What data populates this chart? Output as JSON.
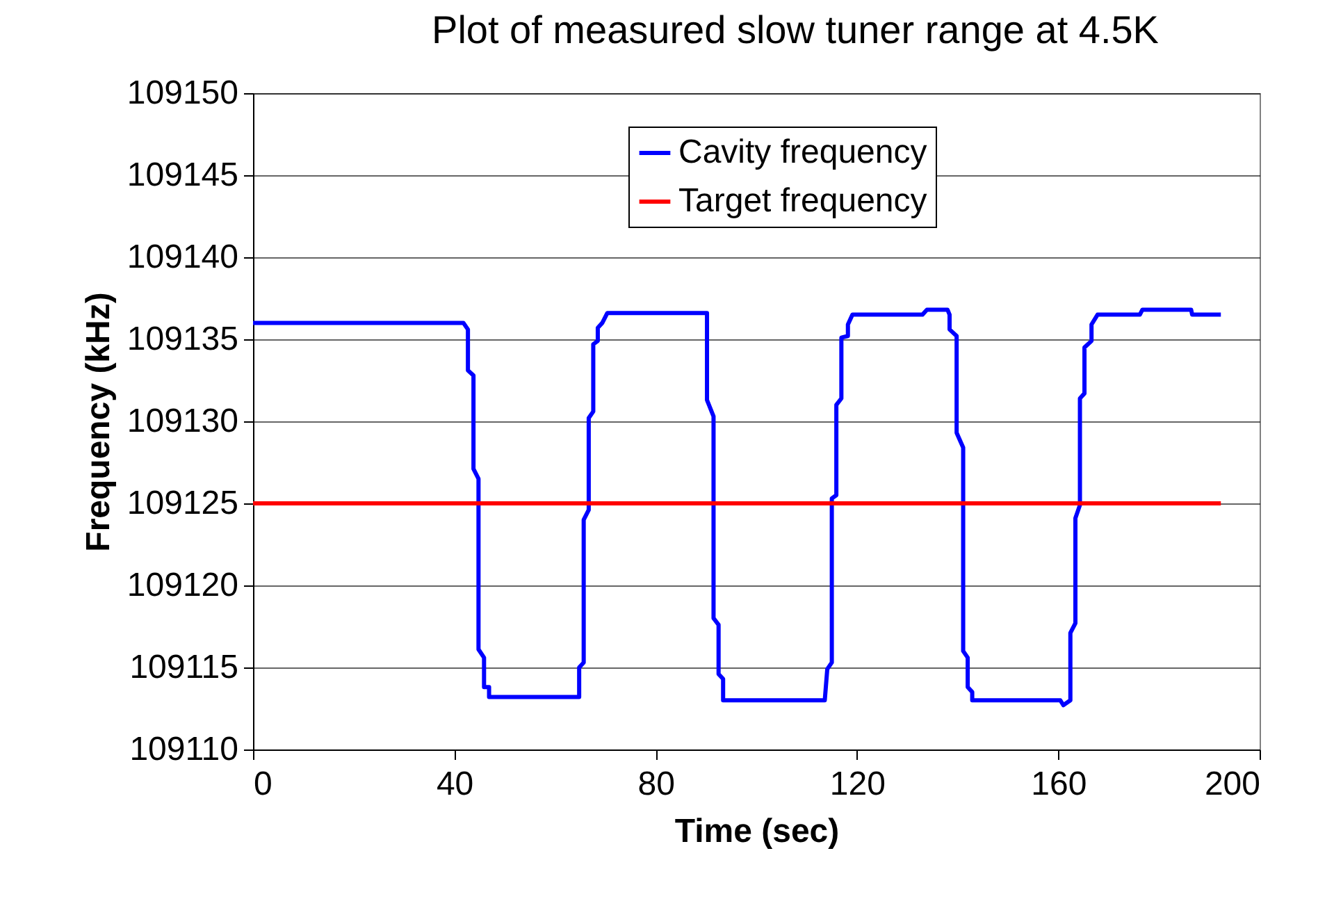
{
  "chart_data": {
    "type": "line",
    "title": "Plot of measured slow tuner range at 4.5K",
    "xlabel": "Time (sec)",
    "ylabel": "Frequency (kHz)",
    "xlim": [
      0,
      200
    ],
    "xticks": [
      0,
      40,
      80,
      120,
      160,
      200
    ],
    "ylim": [
      109110,
      109150
    ],
    "yticks": [
      109110,
      109115,
      109120,
      109125,
      109130,
      109135,
      109140,
      109145,
      109150
    ],
    "grid": "y",
    "legend": "top right",
    "line_style": "solid",
    "marker": "none",
    "series": [
      {
        "name": "Cavity frequency",
        "color": "#0000ff",
        "x": [
          0,
          41.8,
          42.7,
          42.7,
          43.8,
          43.8,
          44.8,
          44.8,
          45.9,
          45.9,
          46.9,
          46.9,
          64.8,
          64.8,
          65.7,
          65.7,
          66.7,
          66.7,
          67.6,
          67.6,
          68.5,
          68.5,
          69.4,
          70.4,
          90.2,
          90.2,
          91.5,
          91.5,
          92.5,
          92.5,
          93.4,
          93.4,
          113.6,
          114.1,
          115,
          115,
          115.9,
          115.9,
          116.9,
          116.9,
          118.2,
          118.2,
          119.1,
          133,
          133.9,
          138,
          138.4,
          138.4,
          139.8,
          139.8,
          141.1,
          141.1,
          142,
          142,
          142.9,
          142.9,
          160.4,
          161,
          162.4,
          162.4,
          163.4,
          163.4,
          164.3,
          164.3,
          165.2,
          165.2,
          166.6,
          166.6,
          167.8,
          176.2,
          176.7,
          186.4,
          186.6,
          192.3
        ],
        "values": [
          109136,
          109136,
          109135.6,
          109133.1,
          109132.8,
          109127.1,
          109126.5,
          109116.1,
          109115.6,
          109113.8,
          109113.8,
          109113.2,
          109113.2,
          109115,
          109115.3,
          109124,
          109124.6,
          109130.2,
          109130.6,
          109134.7,
          109134.9,
          109135.7,
          109136,
          109136.6,
          109136.6,
          109131.3,
          109130.3,
          109118,
          109117.6,
          109114.6,
          109114.3,
          109113,
          109113,
          109114.9,
          109115.3,
          109125.3,
          109125.5,
          109131,
          109131.4,
          109135.1,
          109135.2,
          109135.9,
          109136.5,
          109136.5,
          109136.8,
          109136.8,
          109136.5,
          109135.6,
          109135.2,
          109129.3,
          109128.4,
          109116,
          109115.6,
          109113.8,
          109113.5,
          109113,
          109113,
          109112.7,
          109113,
          109117.1,
          109117.7,
          109124.1,
          109124.9,
          109131.4,
          109131.7,
          109134.5,
          109134.9,
          109135.9,
          109136.5,
          109136.5,
          109136.8,
          109136.8,
          109136.5,
          109136.5
        ]
      },
      {
        "name": "Target frequency",
        "color": "#ff0000",
        "x": [
          0,
          192.3
        ],
        "values": [
          109125,
          109125
        ]
      }
    ]
  }
}
